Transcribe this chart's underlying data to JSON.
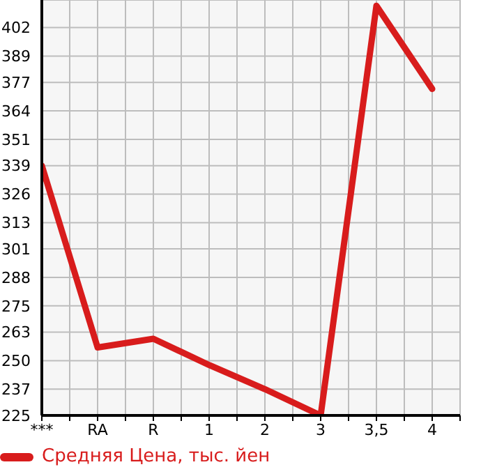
{
  "chart_data": {
    "type": "line",
    "categories": [
      "***",
      "RA",
      "R",
      "1",
      "2",
      "3",
      "3,5",
      "4"
    ],
    "series": [
      {
        "name": "Средняя Цена, тыс. йен",
        "color": "#d81c1c",
        "values": [
          339,
          256,
          260,
          248,
          237,
          225,
          412,
          374
        ]
      }
    ],
    "ylim": [
      225,
      414.6
    ],
    "yticks": [
      225,
      237,
      250,
      263,
      275,
      288,
      301,
      313,
      326,
      339,
      351,
      364,
      377,
      389,
      402
    ],
    "grid": true,
    "legend": "bottom",
    "marker": "none",
    "line_style": "solid"
  }
}
